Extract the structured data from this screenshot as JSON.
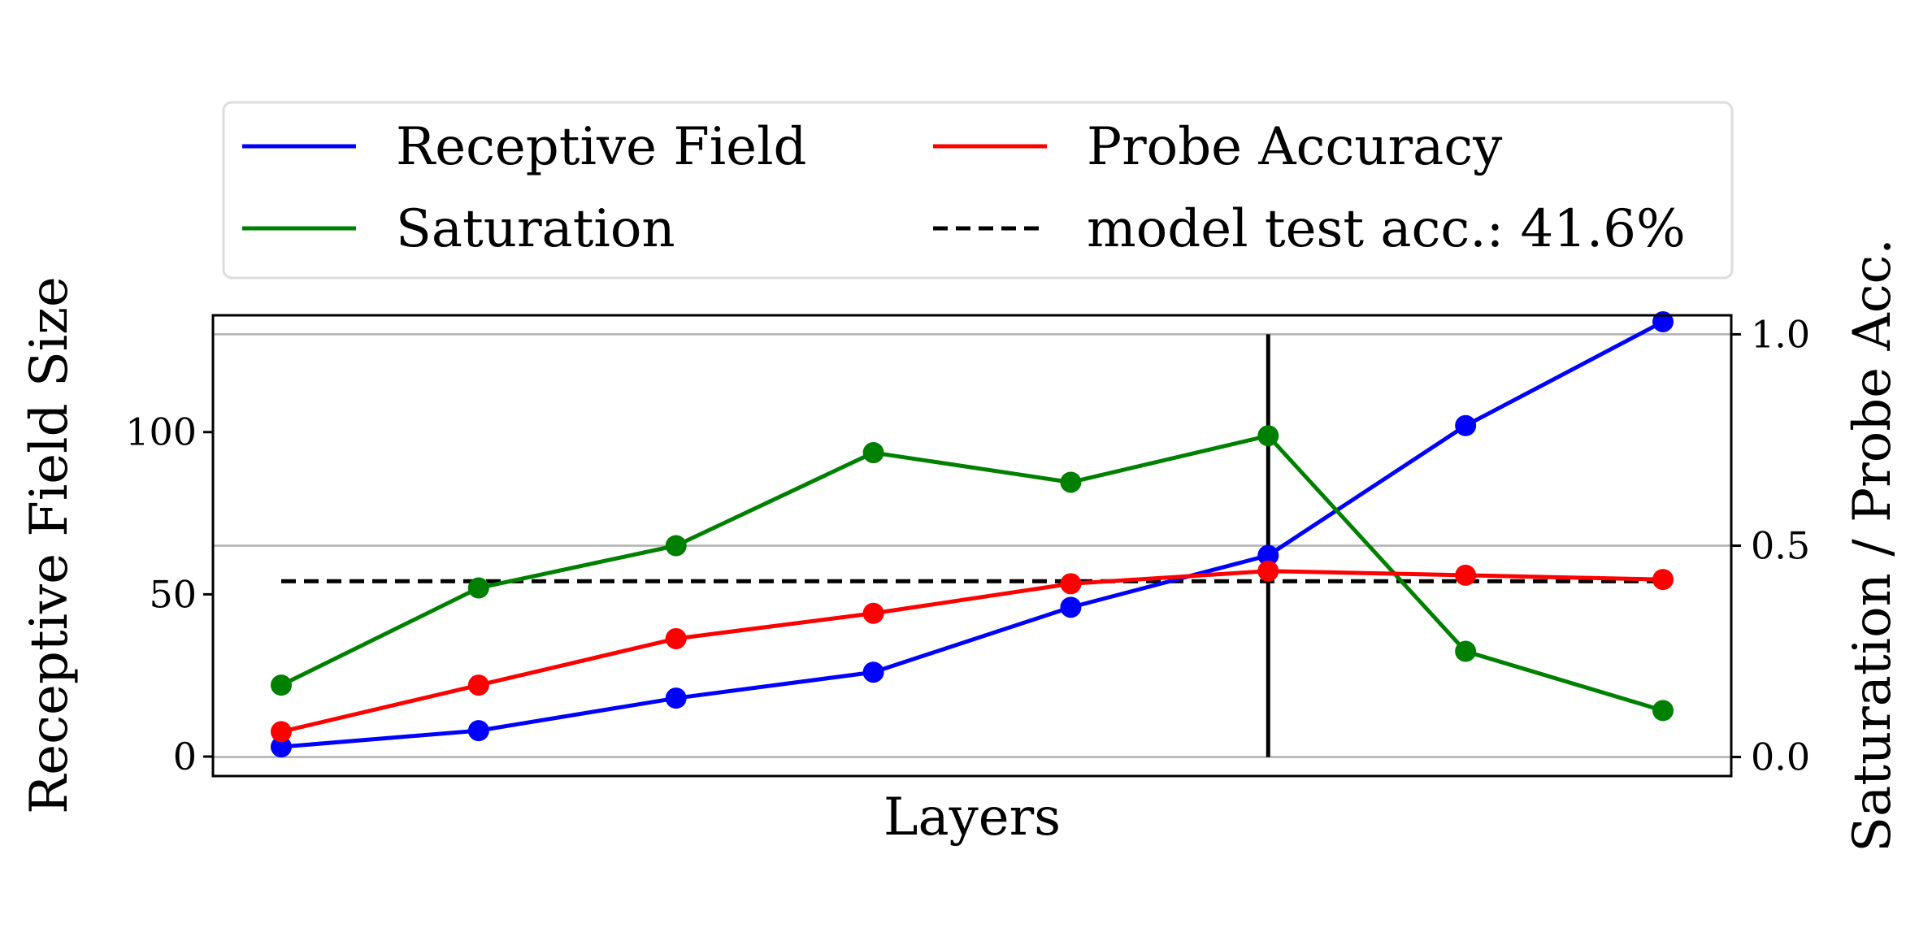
{
  "chart_data": {
    "type": "line",
    "xlabel": "Layers",
    "ylabel_left": "Receptive Field Size",
    "ylabel_right": "Saturation / Probe Acc.",
    "x": [
      1,
      2,
      3,
      4,
      5,
      6,
      7,
      8
    ],
    "ylim_left": [
      -6,
      136
    ],
    "ylim_right": [
      -0.045,
      1.045
    ],
    "yticks_left": [
      0,
      50,
      100
    ],
    "yticks_right": [
      "0.0",
      "0.5",
      "1.0"
    ],
    "grid": "horizontal at right-axis ticks",
    "legend_position": "top, above plot, 2 columns",
    "vertical_marker_x": 6,
    "series": [
      {
        "name": "Receptive Field",
        "axis": "left",
        "color": "#0000ff",
        "values": [
          3,
          8,
          18,
          26,
          46,
          62,
          102,
          134
        ]
      },
      {
        "name": "Saturation",
        "axis": "right",
        "color": "#008000",
        "values": [
          0.17,
          0.4,
          0.5,
          0.72,
          0.65,
          0.76,
          0.25,
          0.11
        ]
      },
      {
        "name": "Probe Accuracy",
        "axis": "right",
        "color": "#ff0000",
        "values": [
          0.06,
          0.17,
          0.28,
          0.34,
          0.41,
          0.44,
          0.43,
          0.42
        ]
      }
    ],
    "reference_line": {
      "name": "model test acc.: 41.6%",
      "axis": "right",
      "value": 0.416,
      "color": "#000000",
      "style": "dashed"
    }
  }
}
